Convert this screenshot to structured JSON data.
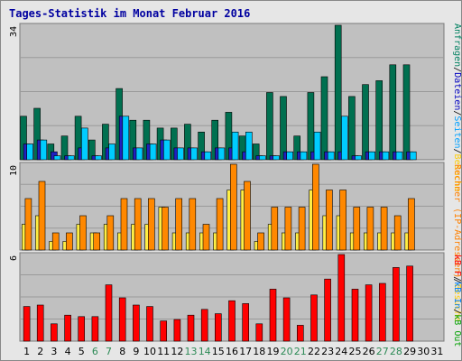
{
  "title": "Tages-Statistik im Monat Februar 2016",
  "colors": {
    "panel_bg": "#c0c0c0",
    "grid": "#9a9a9a",
    "weekday": "#000000",
    "weekend": "#2e8b57"
  },
  "chart_data": [
    {
      "type": "bar",
      "ymax_label": "34",
      "ylim": [
        0,
        34
      ],
      "grid": true,
      "categories": [
        "1",
        "2",
        "3",
        "4",
        "5",
        "6",
        "7",
        "8",
        "9",
        "10",
        "11",
        "12",
        "13",
        "14",
        "15",
        "16",
        "17",
        "18",
        "19",
        "20",
        "21",
        "22",
        "23",
        "24",
        "25",
        "26",
        "27",
        "28",
        "29",
        "30",
        "31"
      ],
      "weekend_days": [
        "6",
        "7",
        "13",
        "14",
        "20",
        "21",
        "27",
        "28"
      ],
      "legend": [
        {
          "text": "Anfragen",
          "color": "#008060"
        },
        {
          "text": "/",
          "color": "#000000"
        },
        {
          "text": "Dateien",
          "color": "#0000c0"
        },
        {
          "text": "/",
          "color": "#000000"
        },
        {
          "text": "Seiten",
          "color": "#00a0ff"
        },
        {
          "text": "/",
          "color": "#000000"
        },
        {
          "text": "Besuche",
          "color": "#ffcc00"
        }
      ],
      "series": [
        {
          "name": "Anfragen",
          "color": "#007050",
          "values": [
            11,
            13,
            4,
            6,
            11,
            5,
            9,
            18,
            10,
            10,
            8,
            8,
            9,
            7,
            10,
            12,
            6,
            4,
            17,
            16,
            6,
            17,
            21,
            34,
            16,
            19,
            20,
            24,
            24,
            0,
            0
          ]
        },
        {
          "name": "Dateien",
          "color": "#2020c0",
          "values": [
            4,
            5,
            2,
            1,
            3,
            1,
            3,
            11,
            3,
            4,
            5,
            3,
            3,
            2,
            3,
            3,
            2,
            1,
            1,
            2,
            2,
            2,
            2,
            2,
            1,
            2,
            2,
            2,
            2,
            0,
            0
          ]
        },
        {
          "name": "Seiten",
          "color": "#00ccff",
          "values": [
            4,
            5,
            1,
            1,
            8,
            1,
            4,
            11,
            3,
            4,
            5,
            3,
            3,
            2,
            3,
            7,
            7,
            1,
            1,
            2,
            2,
            7,
            2,
            11,
            1,
            2,
            2,
            2,
            2,
            0,
            0
          ]
        }
      ]
    },
    {
      "type": "bar",
      "ymax_label": "10",
      "ylim": [
        0,
        10
      ],
      "grid": true,
      "legend": [
        {
          "text": "Rechner (IP-Adressen)",
          "color": "#ff8000"
        },
        {
          "text": "/",
          "color": "#000000"
        },
        {
          "text": "Besuche",
          "color": "#ffcc00"
        }
      ],
      "series": [
        {
          "name": "Besuche",
          "color": "#ffee44",
          "values": [
            3,
            4,
            1,
            1,
            3,
            2,
            3,
            2,
            3,
            3,
            5,
            2,
            2,
            2,
            2,
            7,
            7,
            1,
            3,
            2,
            2,
            7,
            4,
            4,
            2,
            2,
            2,
            2,
            2,
            0,
            0
          ]
        },
        {
          "name": "Rechner (IP-Adressen)",
          "color": "#ff8800",
          "values": [
            6,
            8,
            2,
            2,
            4,
            2,
            4,
            6,
            6,
            6,
            5,
            6,
            6,
            3,
            6,
            10,
            8,
            2,
            5,
            5,
            5,
            10,
            7,
            7,
            5,
            5,
            5,
            4,
            6,
            0,
            0
          ]
        }
      ]
    },
    {
      "type": "bar",
      "ymax_label": "6",
      "ylim": [
        0,
        6
      ],
      "grid": true,
      "legend": [
        {
          "text": "kB F",
          "color": "#ff0000"
        },
        {
          "text": "/",
          "color": "#000000"
        },
        {
          "text": "kB In",
          "color": "#0080ff"
        },
        {
          "text": "/",
          "color": "#000000"
        },
        {
          "text": "kB Out",
          "color": "#00a000"
        }
      ],
      "series": [
        {
          "name": "kB F",
          "color": "#ff0000",
          "values": [
            2.4,
            2.5,
            1.2,
            1.8,
            1.7,
            1.7,
            3.9,
            3.0,
            2.5,
            2.4,
            1.4,
            1.5,
            1.8,
            2.2,
            1.9,
            2.8,
            2.6,
            1.2,
            3.6,
            3.0,
            1.1,
            3.2,
            4.3,
            6.0,
            3.6,
            3.9,
            4.0,
            5.1,
            5.2,
            0,
            0
          ]
        }
      ]
    }
  ]
}
